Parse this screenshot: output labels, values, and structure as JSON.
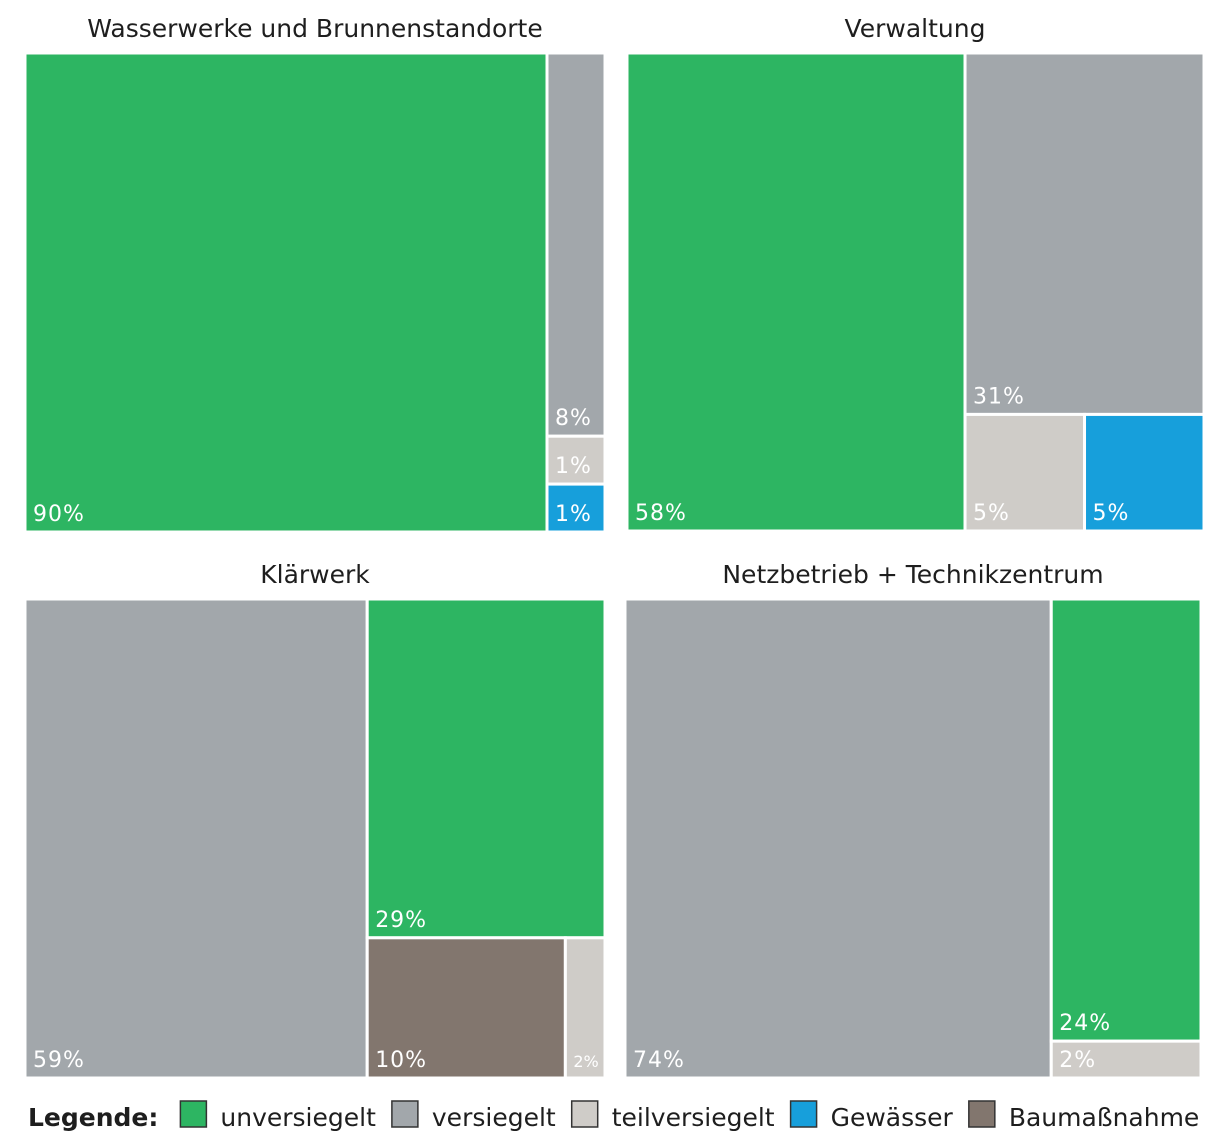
{
  "chart_data": [
    {
      "type": "treemap",
      "title": "Wasserwerke und Brunnenstandorte",
      "values": [
        90,
        8,
        1,
        1
      ],
      "value_labels": [
        "90%",
        "8%",
        "1%",
        "1%"
      ],
      "colors": [
        "#2db562",
        "#a2a7ab",
        "#cfccc8",
        "#179fdb"
      ]
    },
    {
      "type": "treemap",
      "title": "Verwaltung",
      "values": [
        58,
        31,
        5,
        5
      ],
      "value_labels": [
        "58%",
        "31%",
        "5%",
        "5%"
      ],
      "colors": [
        "#2db562",
        "#a2a7ab",
        "#cfccc8",
        "#179fdb"
      ]
    },
    {
      "type": "treemap",
      "title": "Klärwerk",
      "values": [
        59,
        29,
        10,
        2
      ],
      "value_labels": [
        "59%",
        "29%",
        "10%",
        "2%"
      ],
      "colors": [
        "#a2a7ab",
        "#2db562",
        "#82766e",
        "#cfccc8"
      ]
    },
    {
      "type": "treemap",
      "title": "Netzbetrieb + Technikzentrum",
      "values": [
        74,
        24,
        2
      ],
      "value_labels": [
        "74%",
        "24%",
        "2%"
      ],
      "colors": [
        "#a2a7ab",
        "#2db562",
        "#cfccc8"
      ]
    }
  ],
  "legend": {
    "title": "Legende:",
    "items": [
      {
        "name": "unversiegelt",
        "color": "#2db562"
      },
      {
        "name": "versiegelt",
        "color": "#a2a7ab"
      },
      {
        "name": "teilversiegelt",
        "color": "#cfccc8"
      },
      {
        "name": "Gewässer",
        "color": "#179fdb"
      },
      {
        "name": "Baumaßnahme",
        "color": "#82766e"
      }
    ]
  }
}
